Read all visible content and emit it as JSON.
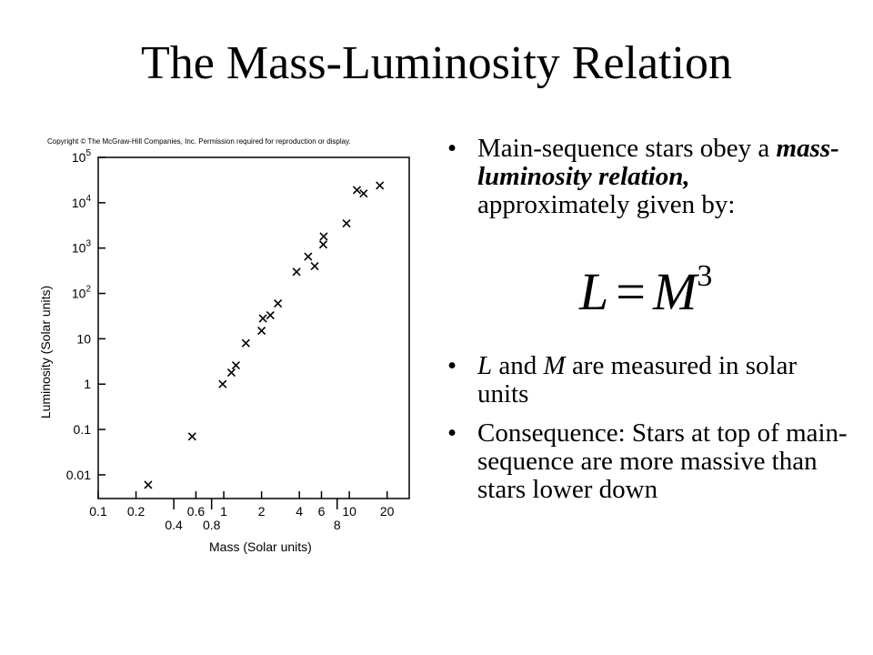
{
  "slide": {
    "title": "The Mass-Luminosity Relation",
    "copyright": "Copyright © The McGraw-Hill Companies, Inc. Permission required for reproduction or display."
  },
  "bullets": [
    {
      "segments": [
        {
          "text": "Main-sequence stars obey a ",
          "style": "normal"
        },
        {
          "text": "mass-luminosity relation,",
          "style": "bold-italic"
        },
        {
          "text": " approximately given by:",
          "style": "normal"
        }
      ]
    },
    {
      "segments": [
        {
          "text": "L",
          "style": "italic"
        },
        {
          "text": " and ",
          "style": "normal"
        },
        {
          "text": "M",
          "style": "italic"
        },
        {
          "text": " are measured in solar units",
          "style": "normal"
        }
      ]
    },
    {
      "segments": [
        {
          "text": "Consequence: Stars at top of main-sequence are more massive than stars lower down",
          "style": "normal"
        }
      ]
    }
  ],
  "formula": {
    "lhs": "L",
    "eq": "=",
    "rhs": "M",
    "exponent": "3"
  },
  "chart_data": {
    "type": "scatter",
    "xlabel": "Mass (Solar units)",
    "ylabel": "Luminosity (Solar units)",
    "xscale": "log",
    "yscale": "log",
    "xlim": [
      0.1,
      30
    ],
    "ylim": [
      0.003,
      100000
    ],
    "marker": "x",
    "x_ticks_major": [
      {
        "value": 0.1,
        "label": "0.1"
      },
      {
        "value": 0.2,
        "label": "0.2"
      },
      {
        "value": 0.6,
        "label": "0.6"
      },
      {
        "value": 1,
        "label": "1"
      },
      {
        "value": 2,
        "label": "2"
      },
      {
        "value": 4,
        "label": "4"
      },
      {
        "value": 6,
        "label": "6"
      },
      {
        "value": 10,
        "label": "10"
      },
      {
        "value": 20,
        "label": "20"
      }
    ],
    "x_ticks_minor": [
      {
        "value": 0.4,
        "label": "0.4"
      },
      {
        "value": 0.8,
        "label": "0.8"
      },
      {
        "value": 8,
        "label": "8"
      }
    ],
    "y_ticks": [
      {
        "value": 0.01,
        "label": "0.01"
      },
      {
        "value": 0.1,
        "label": "0.1"
      },
      {
        "value": 1,
        "label": "1"
      },
      {
        "value": 10,
        "label": "10"
      },
      {
        "value": 100,
        "base": "10",
        "exp": "2"
      },
      {
        "value": 1000,
        "base": "10",
        "exp": "3"
      },
      {
        "value": 10000,
        "base": "10",
        "exp": "4"
      },
      {
        "value": 100000,
        "base": "10",
        "exp": "5"
      }
    ],
    "points": [
      {
        "x": 0.25,
        "y": 0.006
      },
      {
        "x": 0.56,
        "y": 0.07
      },
      {
        "x": 0.98,
        "y": 1.0
      },
      {
        "x": 1.15,
        "y": 1.8
      },
      {
        "x": 1.25,
        "y": 2.6
      },
      {
        "x": 1.5,
        "y": 8
      },
      {
        "x": 2.0,
        "y": 15
      },
      {
        "x": 2.05,
        "y": 28
      },
      {
        "x": 2.35,
        "y": 33
      },
      {
        "x": 2.7,
        "y": 60
      },
      {
        "x": 3.8,
        "y": 300
      },
      {
        "x": 4.7,
        "y": 650
      },
      {
        "x": 5.3,
        "y": 400
      },
      {
        "x": 6.2,
        "y": 1200
      },
      {
        "x": 6.25,
        "y": 1800
      },
      {
        "x": 9.5,
        "y": 3500
      },
      {
        "x": 11.5,
        "y": 19000
      },
      {
        "x": 13,
        "y": 16000
      },
      {
        "x": 17.5,
        "y": 24000
      }
    ]
  }
}
